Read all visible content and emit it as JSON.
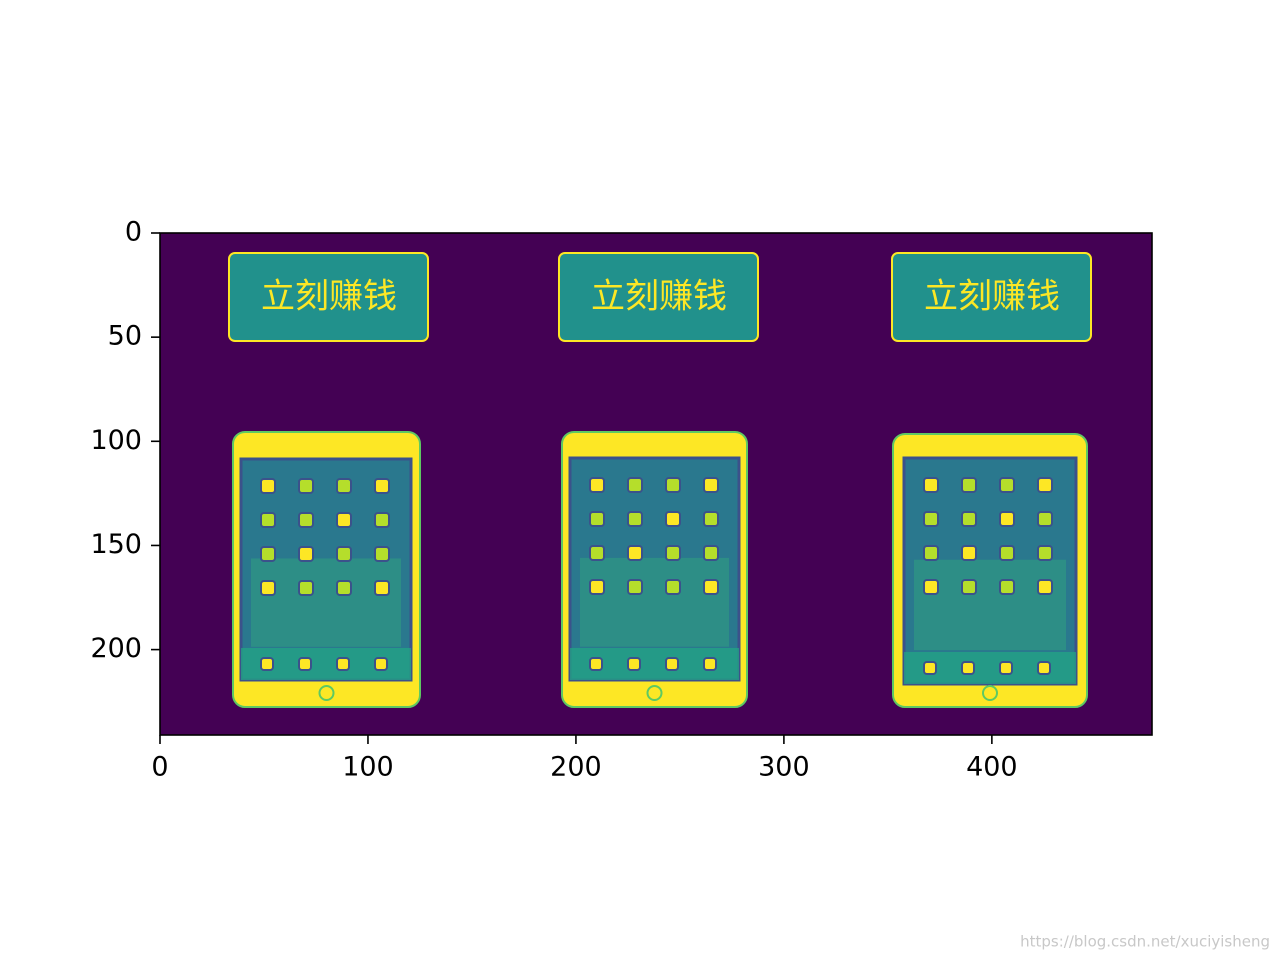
{
  "chart_data": {
    "type": "image",
    "xlim": [
      0,
      477
    ],
    "ylim": [
      241,
      0
    ],
    "xticks": [
      0,
      100,
      200,
      300,
      400
    ],
    "yticks": [
      0,
      50,
      100,
      150,
      200
    ],
    "annotations": [
      "立刻赚钱",
      "立刻赚钱",
      "立刻赚钱"
    ],
    "watermark": "https://blog.csdn.net/xuciyisheng"
  }
}
